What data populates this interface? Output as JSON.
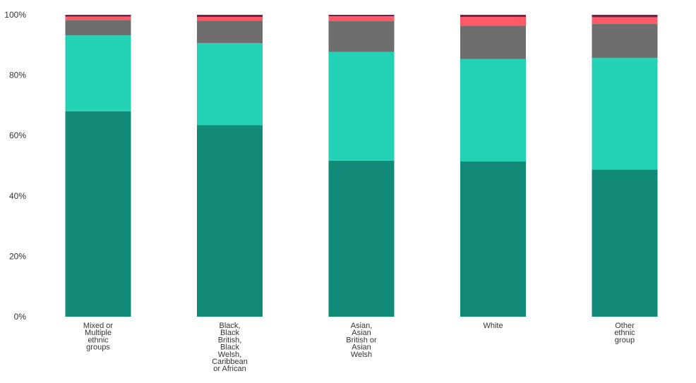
{
  "chart_data": {
    "type": "bar",
    "stacked": true,
    "orientation": "vertical",
    "categories": [
      "Mixed or Multiple ethnic groups",
      "Black, Black British, Black Welsh, Caribbean or African",
      "Asian, Asian British or Asian Welsh",
      "White",
      "Other ethnic group"
    ],
    "category_label_lines": [
      [
        "Mixed or",
        "Multiple",
        "ethnic",
        "groups"
      ],
      [
        "Black,",
        "Black",
        "British,",
        "Black",
        "Welsh,",
        "Caribbean",
        "or African"
      ],
      [
        "Asian,",
        "Asian",
        "British or",
        "Asian",
        "Welsh"
      ],
      [
        "White"
      ],
      [
        "Other",
        "ethnic",
        "group"
      ]
    ],
    "series": [
      {
        "color": "#128a78",
        "values": [
          68.0,
          63.5,
          51.7,
          51.4,
          48.7
        ]
      },
      {
        "color": "#23d2b5",
        "values": [
          25.2,
          27.1,
          36.0,
          34.0,
          37.0
        ]
      },
      {
        "color": "#6e6e6e",
        "values": [
          5.1,
          7.5,
          10.2,
          11.0,
          11.3
        ]
      },
      {
        "color": "#ff5a65",
        "values": [
          1.1,
          1.2,
          1.6,
          2.9,
          2.2
        ]
      },
      {
        "color": "#7d1d4c",
        "values": [
          0.6,
          0.7,
          0.5,
          0.7,
          0.8
        ]
      }
    ],
    "ylim": [
      0,
      100
    ],
    "yticks": [
      0,
      20,
      40,
      60,
      80,
      100
    ],
    "ytick_labels": [
      "0%",
      "20%",
      "40%",
      "60%",
      "80%",
      "100%"
    ],
    "title": "",
    "xlabel": "",
    "ylabel": "",
    "grid": false,
    "legend": "none"
  }
}
